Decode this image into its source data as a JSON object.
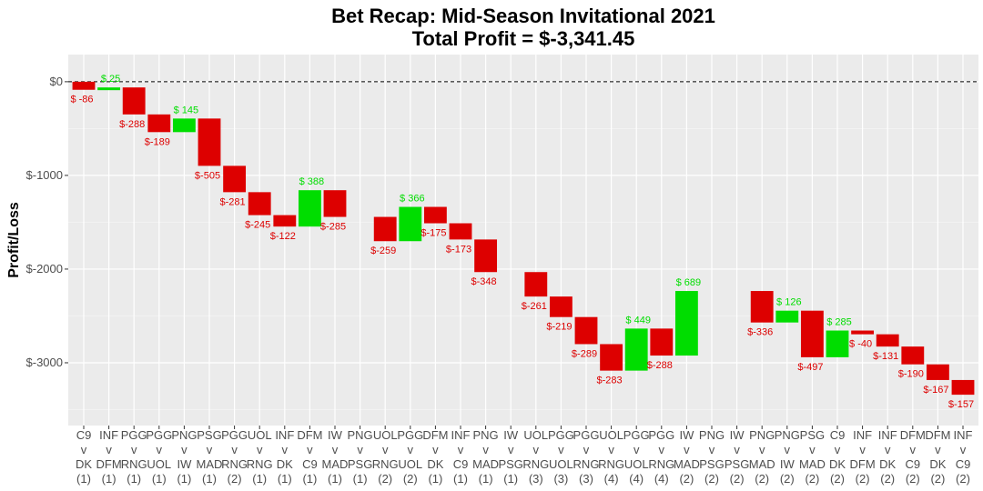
{
  "chart_data": {
    "type": "bar",
    "subtype": "waterfall",
    "title": "Bet Recap: Mid-Season Invitational 2021",
    "subtitle": "Total Profit = $-3,341.45",
    "xlabel": "",
    "ylabel": "Profit/Loss",
    "ylim": [
      -3670,
      290
    ],
    "yticks": [
      0,
      -1000,
      -2000,
      -3000
    ],
    "ytick_labels": [
      "$0",
      "$-1000",
      "$-2000",
      "$-3000"
    ],
    "grid": true,
    "reference_line": 0,
    "colors": {
      "positive": "#00dd00",
      "negative": "#dd0000",
      "panel": "#ebebeb"
    },
    "categories": [
      [
        "C9",
        "v",
        "DK",
        "(1)"
      ],
      [
        "INF",
        "v",
        "DFM",
        "(1)"
      ],
      [
        "PGG",
        "v",
        "RNG",
        "(1)"
      ],
      [
        "PGG",
        "v",
        "UOL",
        "(1)"
      ],
      [
        "PNG",
        "v",
        "IW",
        "(1)"
      ],
      [
        "PSG",
        "v",
        "MAD",
        "(1)"
      ],
      [
        "PGG",
        "v",
        "RNG",
        "(2)"
      ],
      [
        "UOL",
        "v",
        "RNG",
        "(1)"
      ],
      [
        "INF",
        "v",
        "DK",
        "(1)"
      ],
      [
        "DFM",
        "v",
        "C9",
        "(1)"
      ],
      [
        "IW",
        "v",
        "MAD",
        "(1)"
      ],
      [
        "PNG",
        "v",
        "PSG",
        "(1)"
      ],
      [
        "UOL",
        "v",
        "RNG",
        "(2)"
      ],
      [
        "PGG",
        "v",
        "UOL",
        "(2)"
      ],
      [
        "DFM",
        "v",
        "DK",
        "(1)"
      ],
      [
        "INF",
        "v",
        "C9",
        "(1)"
      ],
      [
        "PNG",
        "v",
        "MAD",
        "(1)"
      ],
      [
        "IW",
        "v",
        "PSG",
        "(1)"
      ],
      [
        "UOL",
        "v",
        "RNG",
        "(3)"
      ],
      [
        "PGG",
        "v",
        "UOL",
        "(3)"
      ],
      [
        "PGG",
        "v",
        "RNG",
        "(3)"
      ],
      [
        "UOL",
        "v",
        "RNG",
        "(4)"
      ],
      [
        "PGG",
        "v",
        "UOL",
        "(4)"
      ],
      [
        "PGG",
        "v",
        "RNG",
        "(4)"
      ],
      [
        "IW",
        "v",
        "MAD",
        "(2)"
      ],
      [
        "PNG",
        "v",
        "PSG",
        "(2)"
      ],
      [
        "IW",
        "v",
        "PSG",
        "(2)"
      ],
      [
        "PNG",
        "v",
        "MAD",
        "(2)"
      ],
      [
        "PNG",
        "v",
        "IW",
        "(2)"
      ],
      [
        "PSG",
        "v",
        "MAD",
        "(2)"
      ],
      [
        "C9",
        "v",
        "DK",
        "(2)"
      ],
      [
        "INF",
        "v",
        "DFM",
        "(2)"
      ],
      [
        "INF",
        "v",
        "DK",
        "(2)"
      ],
      [
        "DFM",
        "v",
        "C9",
        "(2)"
      ],
      [
        "DFM",
        "v",
        "DK",
        "(2)"
      ],
      [
        "INF",
        "v",
        "C9",
        "(2)"
      ]
    ],
    "values": [
      -86,
      25,
      -288,
      -189,
      145,
      -505,
      -281,
      -245,
      -122,
      388,
      -285,
      null,
      -259,
      366,
      -175,
      -173,
      -348,
      null,
      -261,
      -219,
      -289,
      -283,
      449,
      -288,
      689,
      null,
      null,
      -336,
      126,
      -497,
      285,
      -40,
      -131,
      -190,
      -167,
      -157
    ],
    "data_labels": [
      "$ -86",
      "$ 25",
      "$-288",
      "$-189",
      "$ 145",
      "$-505",
      "$-281",
      "$-245",
      "$-122",
      "$ 388",
      "$-285",
      null,
      "$-259",
      "$ 366",
      "$-175",
      "$-173",
      "$-348",
      null,
      "$-261",
      "$-219",
      "$-289",
      "$-283",
      "$ 449",
      "$-288",
      "$ 689",
      null,
      null,
      "$-336",
      "$ 126",
      "$-497",
      "$ 285",
      "$ -40",
      "$-131",
      "$-190",
      "$-167",
      "$-157"
    ]
  }
}
